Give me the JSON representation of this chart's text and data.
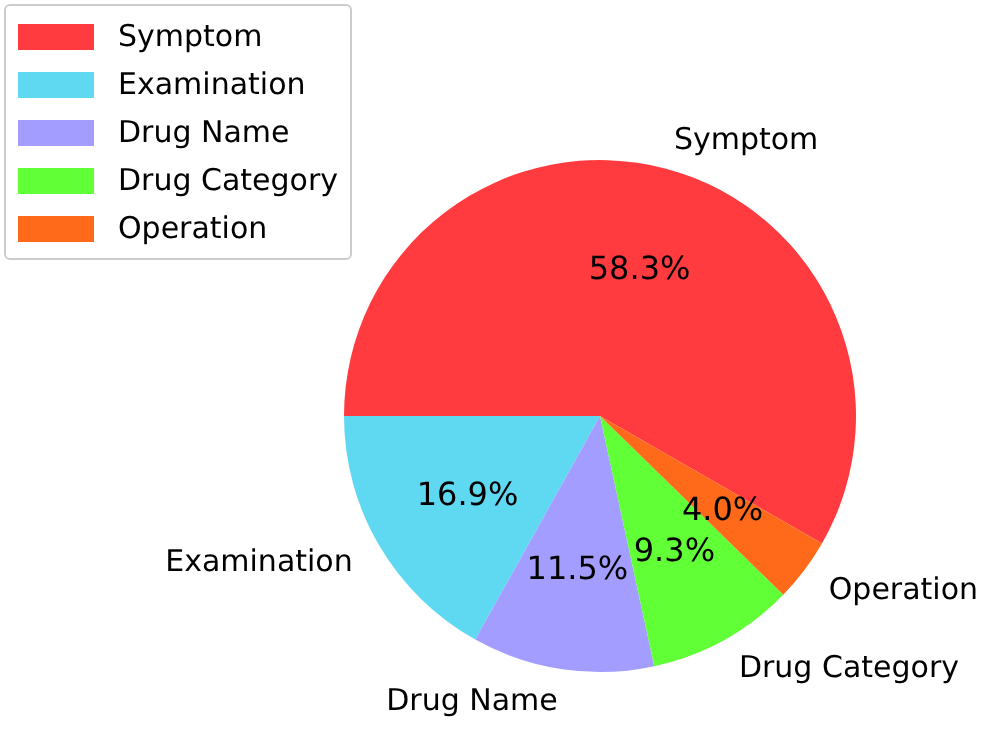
{
  "chart_data": {
    "type": "pie",
    "categories": [
      "Symptom",
      "Examination",
      "Drug Name",
      "Drug Category",
      "Operation"
    ],
    "values": [
      58.3,
      16.9,
      11.5,
      9.3,
      4.0
    ],
    "colors": [
      "#ff3b3f",
      "#5fd8f2",
      "#a29dfe",
      "#60ff36",
      "#ff6a1a"
    ],
    "value_labels": [
      "58.3%",
      "16.9%",
      "11.5%",
      "9.3%",
      "4.0%"
    ],
    "legend": "top left"
  }
}
